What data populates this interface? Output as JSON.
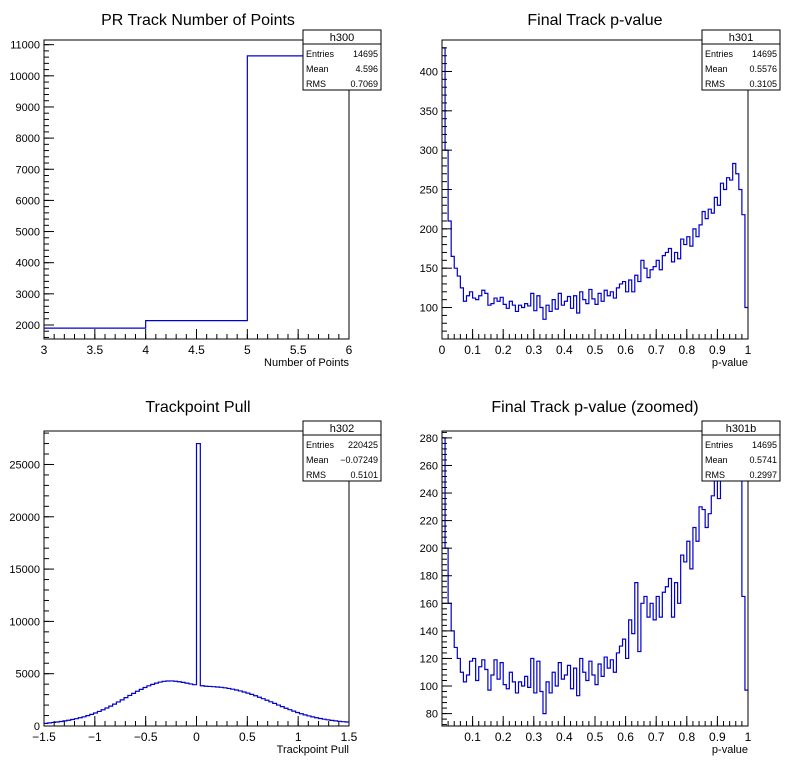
{
  "chart_data": [
    {
      "type": "histogram",
      "name": "h300",
      "title": "PR Track Number of Points",
      "xlabel": "Number of Points",
      "ylabel": "",
      "xlim": [
        3,
        6
      ],
      "ylim": [
        1550,
        11150
      ],
      "xticks": [
        "3",
        "3.5",
        "4",
        "4.5",
        "5",
        "5.5",
        "6"
      ],
      "xtick_values": [
        3,
        3.5,
        4,
        4.5,
        5,
        5.5,
        6
      ],
      "xminor": 0.1,
      "yticks": [
        "2000",
        "3000",
        "4000",
        "5000",
        "6000",
        "7000",
        "8000",
        "9000",
        "10000",
        "11000"
      ],
      "ytick_values": [
        2000,
        3000,
        4000,
        5000,
        6000,
        7000,
        8000,
        9000,
        10000,
        11000
      ],
      "bin_edges": [
        3,
        4,
        5,
        6
      ],
      "values": [
        1900,
        2140,
        10640
      ],
      "line_color": "#0000cc",
      "stats": {
        "name": "h300",
        "rows": [
          [
            "Entries",
            "14695"
          ],
          [
            "Mean",
            "4.596"
          ],
          [
            "RMS",
            "0.7069"
          ]
        ]
      }
    },
    {
      "type": "histogram",
      "name": "h301",
      "title": "Final Track p-value",
      "xlabel": "p-value",
      "ylabel": "",
      "xlim": [
        0,
        1
      ],
      "ylim": [
        60,
        440
      ],
      "xticks": [
        "0",
        "0.1",
        "0.2",
        "0.3",
        "0.4",
        "0.5",
        "0.6",
        "0.7",
        "0.8",
        "0.9",
        "1"
      ],
      "xtick_values": [
        0,
        0.1,
        0.2,
        0.3,
        0.4,
        0.5,
        0.6,
        0.7,
        0.8,
        0.9,
        1
      ],
      "xminor": 0.02,
      "yticks": [
        "100",
        "150",
        "200",
        "250",
        "300",
        "350",
        "400"
      ],
      "ytick_values": [
        100,
        150,
        200,
        250,
        300,
        350,
        400
      ],
      "bin_edges_range": [
        0,
        1
      ],
      "values": [
        430,
        300,
        210,
        165,
        150,
        140,
        125,
        108,
        115,
        120,
        112,
        110,
        115,
        122,
        118,
        103,
        105,
        112,
        108,
        113,
        104,
        99,
        108,
        103,
        95,
        103,
        100,
        105,
        102,
        118,
        96,
        115,
        100,
        85,
        103,
        95,
        110,
        98,
        118,
        103,
        108,
        114,
        99,
        115,
        93,
        120,
        110,
        105,
        123,
        111,
        104,
        118,
        108,
        122,
        115,
        120,
        112,
        125,
        130,
        133,
        120,
        135,
        120,
        141,
        133,
        160,
        150,
        138,
        148,
        152,
        160,
        148,
        166,
        170,
        175,
        158,
        170,
        162,
        187,
        180,
        190,
        178,
        200,
        190,
        205,
        222,
        213,
        225,
        220,
        240,
        230,
        258,
        250,
        265,
        262,
        283,
        270,
        250,
        218,
        100
      ],
      "line_color": "#0000cc",
      "stats": {
        "name": "h301",
        "rows": [
          [
            "Entries",
            "14695"
          ],
          [
            "Mean",
            "0.5576"
          ],
          [
            "RMS",
            "0.3105"
          ]
        ]
      }
    },
    {
      "type": "histogram",
      "name": "h302",
      "title": "Trackpoint Pull",
      "xlabel": "Trackpoint Pull",
      "ylabel": "",
      "xlim": [
        -1.5,
        1.5
      ],
      "ylim": [
        0,
        28200
      ],
      "xticks": [
        "−1.5",
        "−1",
        "−0.5",
        "0",
        "0.5",
        "1",
        "1.5"
      ],
      "xtick_values": [
        -1.5,
        -1,
        -0.5,
        0,
        0.5,
        1,
        1.5
      ],
      "xminor": 0.1,
      "yticks": [
        "0",
        "5000",
        "10000",
        "15000",
        "20000",
        "25000"
      ],
      "ytick_values": [
        0,
        5000,
        10000,
        15000,
        20000,
        25000
      ],
      "bin_edges_range": [
        -1.5,
        1.5
      ],
      "values": [
        250,
        300,
        340,
        380,
        430,
        490,
        550,
        620,
        700,
        790,
        880,
        990,
        1110,
        1240,
        1390,
        1550,
        1720,
        1900,
        2090,
        2300,
        2500,
        2710,
        2920,
        3120,
        3320,
        3500,
        3680,
        3840,
        3980,
        4100,
        4200,
        4270,
        4300,
        4310,
        4280,
        4230,
        4170,
        4100,
        4020,
        3950,
        27000,
        3850,
        3800,
        3780,
        3760,
        3730,
        3700,
        3650,
        3590,
        3520,
        3440,
        3350,
        3250,
        3140,
        3020,
        2890,
        2750,
        2610,
        2460,
        2310,
        2160,
        2000,
        1850,
        1700,
        1560,
        1420,
        1290,
        1170,
        1060,
        960,
        870,
        790,
        720,
        650,
        590,
        540,
        490,
        450,
        410,
        380
      ],
      "line_color": "#0000cc",
      "stats": {
        "name": "h302",
        "rows": [
          [
            "Entries",
            "220425"
          ],
          [
            "Mean",
            "−0.07249"
          ],
          [
            "RMS",
            "0.5101"
          ]
        ]
      }
    },
    {
      "type": "histogram",
      "name": "h301b",
      "title": "Final Track p-value (zoomed)",
      "xlabel": "p-value",
      "ylabel": "",
      "xlim": [
        0,
        1
      ],
      "ylim": [
        71,
        285
      ],
      "xticks": [
        "0.1",
        "0.2",
        "0.3",
        "0.4",
        "0.5",
        "0.6",
        "0.7",
        "0.8",
        "0.9",
        "1"
      ],
      "xtick_values": [
        0.1,
        0.2,
        0.3,
        0.4,
        0.5,
        0.6,
        0.7,
        0.8,
        0.9,
        1
      ],
      "xminor": 0.02,
      "yticks": [
        "80",
        "100",
        "120",
        "140",
        "160",
        "180",
        "200",
        "220",
        "240",
        "260",
        "280"
      ],
      "ytick_values": [
        80,
        100,
        120,
        140,
        160,
        180,
        200,
        220,
        240,
        260,
        280
      ],
      "bin_edges_range": [
        0,
        1
      ],
      "values": [
        280,
        200,
        160,
        140,
        128,
        120,
        110,
        103,
        108,
        118,
        120,
        104,
        114,
        119,
        112,
        97,
        108,
        119,
        105,
        117,
        101,
        98,
        110,
        103,
        95,
        103,
        100,
        107,
        99,
        120,
        95,
        118,
        96,
        80,
        103,
        95,
        110,
        100,
        117,
        105,
        108,
        115,
        98,
        113,
        93,
        120,
        110,
        104,
        118,
        108,
        101,
        116,
        107,
        121,
        113,
        119,
        110,
        124,
        129,
        134,
        120,
        148,
        138,
        175,
        125,
        160,
        165,
        150,
        160,
        148,
        165,
        150,
        168,
        172,
        178,
        150,
        175,
        160,
        195,
        190,
        205,
        185,
        215,
        205,
        230,
        228,
        215,
        225,
        238,
        250,
        236,
        258,
        252,
        265,
        265,
        282,
        272,
        250,
        165,
        97
      ],
      "line_color": "#0000cc",
      "stats": {
        "name": "h301b",
        "rows": [
          [
            "Entries",
            "14695"
          ],
          [
            "Mean",
            "0.5741"
          ],
          [
            "RMS",
            "0.2997"
          ]
        ]
      }
    }
  ]
}
